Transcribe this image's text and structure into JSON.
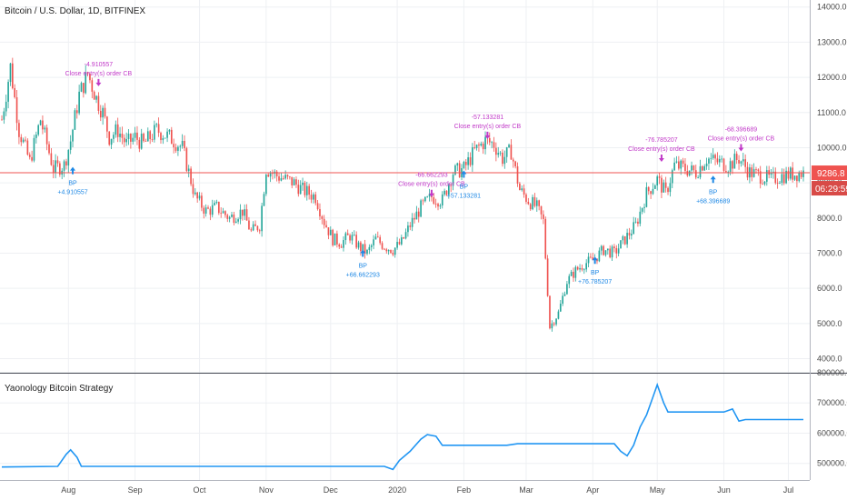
{
  "title": "Bitcoin / U.S. Dollar, 1D, BITFINEX",
  "indicator_title": "Yaonology Bitcoin Strategy",
  "current_price": "9286.8",
  "countdown": "06:29:59",
  "colors": {
    "up": "#26a69a",
    "down": "#ef5350",
    "equity": "#2196f3",
    "buy": "#1e88e5",
    "close": "#c139c8",
    "priceline": "#ef5350"
  },
  "chart_data": [
    {
      "type": "candlestick",
      "title": "Bitcoin / U.S. Dollar, 1D, BITFINEX",
      "y_ticks": [
        "14000.0",
        "13000.0",
        "12000.0",
        "11000.0",
        "10000.0",
        "9000.0",
        "8000.0",
        "7000.0",
        "6000.0",
        "5000.0",
        "4000.0"
      ],
      "ylim": [
        3600,
        14200
      ],
      "x_ticks": [
        "Aug",
        "Sep",
        "Oct",
        "Nov",
        "Dec",
        "2020",
        "Feb",
        "Mar",
        "Apr",
        "May",
        "Jun",
        "Jul"
      ],
      "x_tick_days": [
        31,
        62,
        92,
        123,
        153,
        184,
        215,
        244,
        275,
        305,
        336,
        366
      ],
      "days": 373,
      "close_path": [
        [
          0,
          10800
        ],
        [
          4,
          12300
        ],
        [
          8,
          10500
        ],
        [
          13,
          9600
        ],
        [
          18,
          10800
        ],
        [
          24,
          9400
        ],
        [
          29,
          9500
        ],
        [
          32,
          10200
        ],
        [
          36,
          11500
        ],
        [
          40,
          12100
        ],
        [
          44,
          11400
        ],
        [
          47,
          11000
        ],
        [
          50,
          10300
        ],
        [
          54,
          10500
        ],
        [
          58,
          10100
        ],
        [
          62,
          10300
        ],
        [
          66,
          10100
        ],
        [
          72,
          10500
        ],
        [
          78,
          10300
        ],
        [
          84,
          10000
        ],
        [
          90,
          8600
        ],
        [
          95,
          8200
        ],
        [
          100,
          8300
        ],
        [
          106,
          8000
        ],
        [
          112,
          8200
        ],
        [
          116,
          7600
        ],
        [
          120,
          7800
        ],
        [
          123,
          9400
        ],
        [
          128,
          9200
        ],
        [
          132,
          9100
        ],
        [
          136,
          9000
        ],
        [
          140,
          8800
        ],
        [
          146,
          8600
        ],
        [
          150,
          7900
        ],
        [
          154,
          7400
        ],
        [
          158,
          7300
        ],
        [
          162,
          7500
        ],
        [
          166,
          7200
        ],
        [
          170,
          7000
        ],
        [
          174,
          7400
        ],
        [
          178,
          7200
        ],
        [
          182,
          7100
        ],
        [
          186,
          7300
        ],
        [
          190,
          7800
        ],
        [
          195,
          8300
        ],
        [
          200,
          8600
        ],
        [
          205,
          8500
        ],
        [
          210,
          9300
        ],
        [
          215,
          9400
        ],
        [
          220,
          9900
        ],
        [
          225,
          10200
        ],
        [
          229,
          10100
        ],
        [
          233,
          9700
        ],
        [
          237,
          9900
        ],
        [
          241,
          8800
        ],
        [
          245,
          8500
        ],
        [
          249,
          8300
        ],
        [
          252,
          7900
        ],
        [
          255,
          4900
        ],
        [
          259,
          5300
        ],
        [
          263,
          6200
        ],
        [
          267,
          6500
        ],
        [
          271,
          6700
        ],
        [
          275,
          6800
        ],
        [
          280,
          7100
        ],
        [
          285,
          7000
        ],
        [
          290,
          7400
        ],
        [
          295,
          7800
        ],
        [
          300,
          8700
        ],
        [
          305,
          9100
        ],
        [
          309,
          8700
        ],
        [
          313,
          9500
        ],
        [
          318,
          9400
        ],
        [
          323,
          9300
        ],
        [
          328,
          9700
        ],
        [
          333,
          9600
        ],
        [
          338,
          9500
        ],
        [
          343,
          9700
        ],
        [
          348,
          9300
        ],
        [
          353,
          9200
        ],
        [
          358,
          9100
        ],
        [
          363,
          9200
        ],
        [
          368,
          9250
        ],
        [
          373,
          9286.8
        ]
      ],
      "annotations": [
        {
          "kind": "buy",
          "day": 33,
          "price": 9350,
          "label": "BP",
          "value": "+4.910557"
        },
        {
          "kind": "close",
          "day": 45,
          "price": 11850,
          "label": "Close entry(s) order CB",
          "value": "-4.910557"
        },
        {
          "kind": "close",
          "day": 200,
          "price": 8700,
          "label": "Close entry(s) order CB",
          "value": "-66.662293"
        },
        {
          "kind": "buy",
          "day": 168,
          "price": 7000,
          "label": "BP",
          "value": "+66.662293"
        },
        {
          "kind": "buy",
          "day": 215,
          "price": 9250,
          "label": "BP",
          "value": "+57.133281"
        },
        {
          "kind": "close",
          "day": 226,
          "price": 10350,
          "label": "Close entry(s) order CB",
          "value": "-57.133281"
        },
        {
          "kind": "buy",
          "day": 276,
          "price": 6800,
          "label": "BP",
          "value": "+76.785207"
        },
        {
          "kind": "close",
          "day": 307,
          "price": 9700,
          "label": "Close entry(s) order CB",
          "value": "-76.785207"
        },
        {
          "kind": "buy",
          "day": 331,
          "price": 9100,
          "label": "BP",
          "value": "+68.396689"
        },
        {
          "kind": "close",
          "day": 344,
          "price": 10000,
          "label": "Close entry(s) order CB",
          "value": "-68.396689"
        }
      ]
    },
    {
      "type": "line",
      "title": "Yaonology Bitcoin Strategy",
      "y_ticks": [
        "800000.0",
        "700000.0",
        "600000.0",
        "500000.0"
      ],
      "ylim": [
        445000,
        800000
      ],
      "series": [
        {
          "values": [
            [
              0,
              488000
            ],
            [
              26,
              490000
            ],
            [
              30,
              530000
            ],
            [
              32,
              545000
            ],
            [
              35,
              520000
            ],
            [
              37,
              490000
            ],
            [
              160,
              490000
            ],
            [
              178,
              490000
            ],
            [
              182,
              480000
            ],
            [
              185,
              510000
            ],
            [
              190,
              540000
            ],
            [
              195,
              580000
            ],
            [
              198,
              595000
            ],
            [
              202,
              590000
            ],
            [
              205,
              560000
            ],
            [
              235,
              560000
            ],
            [
              240,
              565000
            ],
            [
              285,
              565000
            ],
            [
              288,
              540000
            ],
            [
              291,
              525000
            ],
            [
              294,
              560000
            ],
            [
              297,
              620000
            ],
            [
              300,
              660000
            ],
            [
              303,
              720000
            ],
            [
              305,
              760000
            ],
            [
              308,
              700000
            ],
            [
              310,
              670000
            ],
            [
              336,
              670000
            ],
            [
              340,
              680000
            ],
            [
              343,
              640000
            ],
            [
              346,
              645000
            ],
            [
              373,
              645000
            ]
          ]
        }
      ]
    }
  ]
}
